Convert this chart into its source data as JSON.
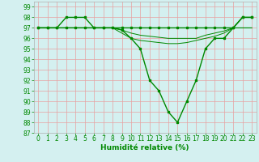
{
  "lines": [
    {
      "x": [
        0,
        1,
        2,
        3,
        4,
        5,
        6,
        7,
        8,
        9,
        10,
        11,
        12,
        13,
        14,
        15,
        16,
        17,
        18,
        19,
        20,
        21,
        22,
        23
      ],
      "y": [
        97,
        97,
        97,
        98,
        98,
        98,
        97,
        97,
        97,
        97,
        97,
        97,
        97,
        97,
        97,
        97,
        97,
        97,
        97,
        97,
        97,
        97,
        98,
        98
      ],
      "color": "#008800",
      "lw": 1.0,
      "marker": "s",
      "ms": 2.0,
      "zorder": 3
    },
    {
      "x": [
        0,
        1,
        2,
        3,
        4,
        5,
        6,
        7,
        8,
        9,
        10,
        11,
        12,
        13,
        14,
        15,
        16,
        17,
        18,
        19,
        20,
        21,
        22,
        23
      ],
      "y": [
        97,
        97,
        97,
        97,
        97,
        97,
        97,
        97,
        97,
        96.8,
        96.5,
        96.3,
        96.2,
        96.1,
        96.0,
        96.0,
        96.0,
        96.0,
        96.3,
        96.5,
        96.7,
        97,
        97,
        97
      ],
      "color": "#008800",
      "lw": 0.7,
      "marker": null,
      "ms": 0,
      "zorder": 2
    },
    {
      "x": [
        0,
        1,
        2,
        3,
        4,
        5,
        6,
        7,
        8,
        9,
        10,
        11,
        12,
        13,
        14,
        15,
        16,
        17,
        18,
        19,
        20,
        21,
        22,
        23
      ],
      "y": [
        97,
        97,
        97,
        97,
        97,
        97,
        97,
        97,
        97,
        96.5,
        96.0,
        95.8,
        95.7,
        95.6,
        95.5,
        95.5,
        95.6,
        95.8,
        96.0,
        96.2,
        96.5,
        97,
        97,
        97
      ],
      "color": "#008800",
      "lw": 0.7,
      "marker": null,
      "ms": 0,
      "zorder": 2
    },
    {
      "x": [
        0,
        1,
        2,
        3,
        4,
        5,
        6,
        7,
        8,
        9,
        10,
        11,
        12,
        13,
        14,
        15,
        16,
        17,
        18,
        19,
        20,
        21,
        22,
        23
      ],
      "y": [
        97,
        97,
        97,
        97,
        97,
        97,
        97,
        97,
        97,
        96.8,
        96,
        95,
        92,
        91,
        89,
        88,
        90,
        92,
        95,
        96,
        96,
        97,
        98,
        98
      ],
      "color": "#008800",
      "lw": 1.0,
      "marker": "s",
      "ms": 2.0,
      "zorder": 3
    }
  ],
  "xlim": [
    -0.5,
    23.5
  ],
  "ylim": [
    87,
    99.5
  ],
  "yticks": [
    87,
    88,
    89,
    90,
    91,
    92,
    93,
    94,
    95,
    96,
    97,
    98,
    99
  ],
  "xticks": [
    0,
    1,
    2,
    3,
    4,
    5,
    6,
    7,
    8,
    9,
    10,
    11,
    12,
    13,
    14,
    15,
    16,
    17,
    18,
    19,
    20,
    21,
    22,
    23
  ],
  "xlabel": "Humidité relative (%)",
  "bg_color": "#d4f0f0",
  "grid_color": "#e8a0a0",
  "spine_color": "#b0b0b0",
  "line_color": "#008800",
  "tick_color": "#008800",
  "label_color": "#008800",
  "xlabel_fontsize": 6.5,
  "tick_fontsize": 5.5
}
